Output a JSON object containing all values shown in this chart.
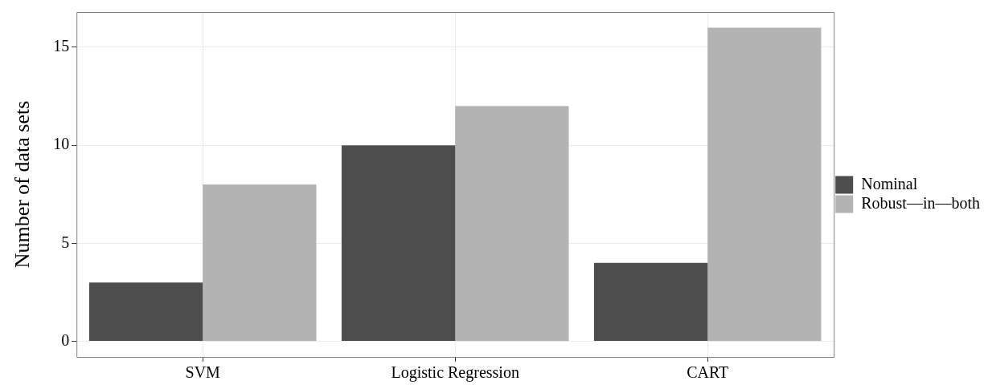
{
  "chart_data": {
    "type": "bar",
    "ylabel": "Number of data sets",
    "categories": [
      "SVM",
      "Logistic Regression",
      "CART"
    ],
    "series": [
      {
        "name": "Nominal",
        "color": "#4d4d4d",
        "values": [
          3,
          10,
          4
        ]
      },
      {
        "name": "Robust—in—both",
        "color": "#b3b3b3",
        "values": [
          8,
          12,
          16
        ]
      }
    ],
    "ylim": [
      -0.8,
      16.8
    ],
    "yticks": [
      0,
      5,
      10,
      15
    ],
    "grid": true,
    "legend": "right"
  }
}
